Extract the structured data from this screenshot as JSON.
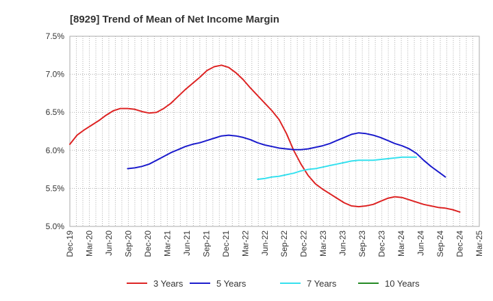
{
  "chart_data": {
    "type": "line",
    "title": "[8929]  Trend of Mean of Net Income Margin",
    "xlabel": "",
    "ylabel": "",
    "ylim": [
      5.0,
      7.5
    ],
    "y_ticks": [
      "7.5%",
      "7.0%",
      "6.5%",
      "6.0%",
      "5.5%",
      "5.0%"
    ],
    "y_tick_values": [
      7.5,
      7.0,
      6.5,
      6.0,
      5.5,
      5.0
    ],
    "x_ticks": [
      "Dec-19",
      "Mar-20",
      "Jun-20",
      "Sep-20",
      "Dec-20",
      "Mar-21",
      "Jun-21",
      "Sep-21",
      "Dec-21",
      "Mar-22",
      "Jun-22",
      "Sep-22",
      "Dec-22",
      "Mar-23",
      "Jun-23",
      "Sep-23",
      "Dec-23",
      "Mar-24",
      "Jun-24",
      "Sep-24",
      "Dec-24",
      "Mar-25"
    ],
    "grid": true,
    "legend_position": "bottom",
    "series": [
      {
        "name": "3 Years",
        "color": "#dd2222",
        "points": [
          [
            0,
            6.08
          ],
          [
            0.5,
            6.2
          ],
          [
            1,
            6.27
          ],
          [
            1.5,
            6.33
          ],
          [
            2,
            6.39
          ],
          [
            2.5,
            6.46
          ],
          [
            3,
            6.52
          ],
          [
            3.5,
            6.55
          ],
          [
            4,
            6.55
          ],
          [
            4.5,
            6.54
          ],
          [
            5,
            6.51
          ],
          [
            5.5,
            6.49
          ],
          [
            6,
            6.5
          ],
          [
            6.5,
            6.55
          ],
          [
            7,
            6.62
          ],
          [
            7.5,
            6.71
          ],
          [
            8,
            6.8
          ],
          [
            8.5,
            6.88
          ],
          [
            9,
            6.96
          ],
          [
            9.5,
            7.05
          ],
          [
            10,
            7.1
          ],
          [
            10.5,
            7.12
          ],
          [
            11,
            7.09
          ],
          [
            11.5,
            7.02
          ],
          [
            12,
            6.93
          ],
          [
            12.5,
            6.82
          ],
          [
            13,
            6.72
          ],
          [
            13.5,
            6.62
          ],
          [
            14,
            6.52
          ],
          [
            14.5,
            6.4
          ],
          [
            15,
            6.22
          ],
          [
            15.5,
            6.0
          ],
          [
            16,
            5.82
          ],
          [
            16.5,
            5.67
          ],
          [
            17,
            5.56
          ],
          [
            17.5,
            5.49
          ],
          [
            18,
            5.43
          ],
          [
            18.5,
            5.37
          ],
          [
            19,
            5.31
          ],
          [
            19.5,
            5.27
          ],
          [
            20,
            5.26
          ],
          [
            20.5,
            5.27
          ],
          [
            21,
            5.29
          ],
          [
            21.5,
            5.33
          ],
          [
            22,
            5.37
          ],
          [
            22.5,
            5.39
          ],
          [
            23,
            5.38
          ],
          [
            23.5,
            5.35
          ],
          [
            24,
            5.32
          ],
          [
            24.5,
            5.29
          ],
          [
            25,
            5.27
          ],
          [
            25.5,
            5.25
          ],
          [
            26,
            5.24
          ],
          [
            26.5,
            5.22
          ],
          [
            27,
            5.19
          ]
        ]
      },
      {
        "name": "5 Years",
        "color": "#1a1acc",
        "points": [
          [
            4,
            5.76
          ],
          [
            4.5,
            5.77
          ],
          [
            5,
            5.79
          ],
          [
            5.5,
            5.82
          ],
          [
            6,
            5.87
          ],
          [
            6.5,
            5.92
          ],
          [
            7,
            5.97
          ],
          [
            7.5,
            6.01
          ],
          [
            8,
            6.05
          ],
          [
            8.5,
            6.08
          ],
          [
            9,
            6.1
          ],
          [
            9.5,
            6.13
          ],
          [
            10,
            6.16
          ],
          [
            10.5,
            6.19
          ],
          [
            11,
            6.2
          ],
          [
            11.5,
            6.19
          ],
          [
            12,
            6.17
          ],
          [
            12.5,
            6.14
          ],
          [
            13,
            6.1
          ],
          [
            13.5,
            6.07
          ],
          [
            14,
            6.05
          ],
          [
            14.5,
            6.03
          ],
          [
            15,
            6.02
          ],
          [
            15.5,
            6.01
          ],
          [
            16,
            6.01
          ],
          [
            16.5,
            6.02
          ],
          [
            17,
            6.04
          ],
          [
            17.5,
            6.06
          ],
          [
            18,
            6.09
          ],
          [
            18.5,
            6.13
          ],
          [
            19,
            6.17
          ],
          [
            19.5,
            6.21
          ],
          [
            20,
            6.23
          ],
          [
            20.5,
            6.22
          ],
          [
            21,
            6.2
          ],
          [
            21.5,
            6.17
          ],
          [
            22,
            6.13
          ],
          [
            22.5,
            6.09
          ],
          [
            23,
            6.06
          ],
          [
            23.5,
            6.02
          ],
          [
            24,
            5.96
          ],
          [
            24.5,
            5.87
          ],
          [
            25,
            5.79
          ],
          [
            25.5,
            5.72
          ],
          [
            26,
            5.65
          ]
        ]
      },
      {
        "name": "7 Years",
        "color": "#33e0ee",
        "points": [
          [
            13,
            5.62
          ],
          [
            13.5,
            5.63
          ],
          [
            14,
            5.65
          ],
          [
            14.5,
            5.66
          ],
          [
            15,
            5.68
          ],
          [
            15.5,
            5.7
          ],
          [
            16,
            5.73
          ],
          [
            16.5,
            5.75
          ],
          [
            17,
            5.76
          ],
          [
            17.5,
            5.78
          ],
          [
            18,
            5.8
          ],
          [
            18.5,
            5.82
          ],
          [
            19,
            5.84
          ],
          [
            19.5,
            5.86
          ],
          [
            20,
            5.87
          ],
          [
            20.5,
            5.87
          ],
          [
            21,
            5.87
          ],
          [
            21.5,
            5.88
          ],
          [
            22,
            5.89
          ],
          [
            22.5,
            5.9
          ],
          [
            23,
            5.91
          ],
          [
            23.5,
            5.91
          ],
          [
            24,
            5.91
          ]
        ]
      },
      {
        "name": "10 Years",
        "color": "#228822",
        "points": []
      }
    ]
  }
}
